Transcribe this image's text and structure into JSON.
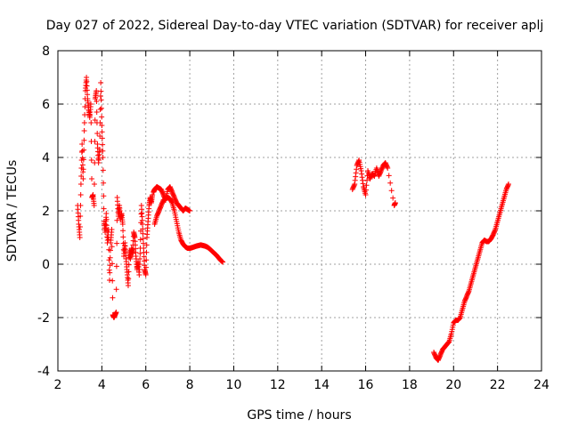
{
  "chart_data": {
    "type": "scatter",
    "title": "Day 027 of 2022, Sidereal Day-to-day VTEC variation (SDTVAR) for receiver aplj",
    "xlabel": "GPS time / hours",
    "ylabel": "SDTVAR / TECUs",
    "xlim": [
      2,
      24
    ],
    "ylim": [
      -4,
      8
    ],
    "x_ticks": [
      2,
      4,
      6,
      8,
      10,
      12,
      14,
      16,
      18,
      20,
      22,
      24
    ],
    "y_ticks": [
      -4,
      -2,
      0,
      2,
      4,
      6,
      8
    ],
    "grid": true,
    "marker": "plus",
    "color": "#ff0000",
    "series": [
      {
        "name": "SDTVAR",
        "segments": [
          {
            "x": [
              2.9,
              2.95,
              3.0,
              3.05,
              3.1,
              3.15,
              3.2,
              3.25,
              3.3,
              3.35,
              3.4,
              3.45,
              3.5,
              3.55,
              3.6,
              3.65,
              3.7,
              3.75,
              3.8,
              3.85,
              3.9,
              3.95,
              4.0,
              4.05,
              4.1,
              4.15,
              4.2,
              4.25,
              4.3,
              4.35,
              4.4,
              4.45,
              4.5,
              4.55,
              4.6,
              4.65,
              4.7,
              4.75,
              4.8,
              4.85,
              4.9,
              4.95,
              5.0,
              5.05,
              5.1,
              5.15,
              5.2,
              5.25,
              5.3,
              5.35,
              5.4,
              5.45,
              5.5,
              5.55,
              5.6,
              5.65,
              5.7,
              5.75,
              5.8,
              5.85,
              5.9,
              5.95,
              6.0,
              6.05,
              6.1,
              6.15,
              6.2,
              6.25,
              6.3
            ],
            "y": [
              2.2,
              1.5,
              1.0,
              3.0,
              4.5,
              3.2,
              5.0,
              6.5,
              7.0,
              6.2,
              5.8,
              5.5,
              6.0,
              2.5,
              2.6,
              2.2,
              6.2,
              6.5,
              4.5,
              3.8,
              4.3,
              6.8,
              5.2,
              4.0,
              1.6,
              1.2,
              1.9,
              0.8,
              1.3,
              -0.6,
              0.8,
              1.3,
              -1.9,
              -2.0,
              -1.9,
              -1.8,
              2.5,
              1.8,
              2.2,
              1.7,
              1.9,
              1.5,
              0.3,
              0.8,
              0.2,
              -0.3,
              -0.8,
              0.5,
              0.2,
              0.6,
              0.4,
              1.2,
              1.0,
              0.3,
              -0.2,
              0.1,
              -0.4,
              0.6,
              2.2,
              1.5,
              0.6,
              -0.2,
              -0.4,
              1.0,
              1.6,
              2.2,
              2.5,
              2.3,
              2.6
            ]
          },
          {
            "x": [
              6.35,
              6.4,
              6.5,
              6.6,
              6.7,
              6.8,
              6.9,
              7.0,
              7.1,
              7.2,
              7.3,
              7.4,
              7.5,
              7.6,
              7.7,
              7.8,
              7.9,
              8.0
            ],
            "y": [
              2.7,
              2.8,
              2.9,
              2.85,
              2.8,
              2.6,
              2.4,
              2.8,
              2.9,
              2.7,
              2.5,
              2.3,
              2.2,
              2.1,
              2.0,
              2.1,
              2.05,
              2.0
            ]
          },
          {
            "x": [
              6.4,
              6.5,
              6.6,
              6.7,
              6.8,
              6.9,
              7.0,
              7.1,
              7.2,
              7.3,
              7.4,
              7.5,
              7.6,
              7.7,
              7.8,
              7.9,
              8.0,
              8.1,
              8.2,
              8.3,
              8.4,
              8.5,
              8.6,
              8.7,
              8.8,
              8.9,
              9.0,
              9.1,
              9.2,
              9.3,
              9.4,
              9.5
            ],
            "y": [
              1.5,
              1.8,
              2.0,
              2.2,
              2.4,
              2.45,
              2.5,
              2.45,
              2.3,
              2.0,
              1.6,
              1.2,
              0.9,
              0.75,
              0.65,
              0.6,
              0.6,
              0.62,
              0.65,
              0.68,
              0.7,
              0.72,
              0.7,
              0.68,
              0.64,
              0.58,
              0.5,
              0.42,
              0.35,
              0.25,
              0.15,
              0.08
            ]
          },
          {
            "x": [
              15.4,
              15.5,
              15.6,
              15.7,
              15.8,
              15.9,
              16.0,
              16.1,
              16.2,
              16.3,
              16.4,
              16.5,
              16.6,
              16.7,
              16.8,
              16.9,
              17.0,
              17.3,
              17.35
            ],
            "y": [
              2.8,
              3.0,
              3.7,
              3.9,
              3.5,
              2.9,
              2.6,
              3.5,
              3.2,
              3.4,
              3.3,
              3.6,
              3.3,
              3.5,
              3.7,
              3.8,
              3.6,
              2.2,
              2.3
            ]
          },
          {
            "x": [
              19.1,
              19.2,
              19.3,
              19.4,
              19.5,
              19.6,
              19.7,
              19.8,
              19.9,
              20.0,
              20.1,
              20.2,
              20.3,
              20.4,
              20.5,
              20.6,
              20.7,
              20.8,
              20.9,
              21.0,
              21.1,
              21.2,
              21.3,
              21.4,
              21.5,
              21.6,
              21.7,
              21.8,
              21.9,
              22.0,
              22.1,
              22.2,
              22.3,
              22.4,
              22.5
            ],
            "y": [
              -3.3,
              -3.5,
              -3.6,
              -3.4,
              -3.2,
              -3.1,
              -3.0,
              -2.9,
              -2.6,
              -2.2,
              -2.1,
              -2.1,
              -2.0,
              -1.7,
              -1.4,
              -1.2,
              -1.0,
              -0.7,
              -0.4,
              -0.1,
              0.2,
              0.5,
              0.8,
              0.9,
              0.85,
              0.85,
              0.95,
              1.1,
              1.3,
              1.6,
              1.9,
              2.2,
              2.5,
              2.8,
              3.0
            ]
          }
        ]
      }
    ]
  }
}
